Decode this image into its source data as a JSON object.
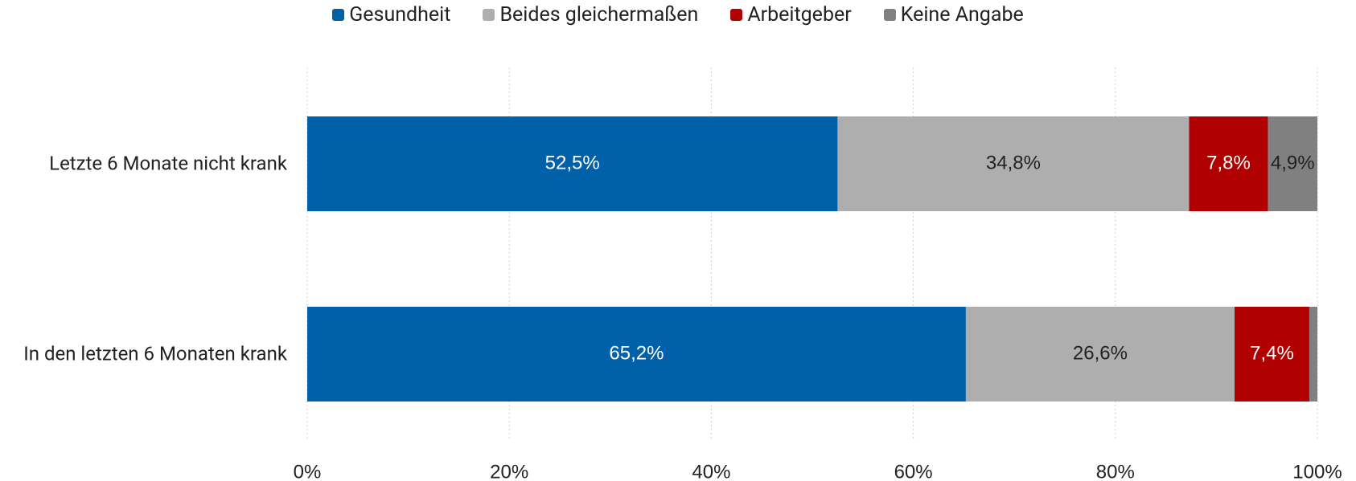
{
  "chart_data": {
    "type": "stacked-bar-horizontal",
    "categories": [
      "Letzte 6 Monate nicht krank",
      "In den letzten 6 Monaten krank"
    ],
    "series": [
      {
        "name": "Gesundheit",
        "color": "#0060a8",
        "label_color": "#ffffff",
        "values": [
          52.5,
          65.2
        ],
        "value_labels": [
          "52,5%",
          "65,2%"
        ]
      },
      {
        "name": "Beides gleichermaßen",
        "color": "#aeaeae",
        "label_color": "#222222",
        "values": [
          34.8,
          26.6
        ],
        "value_labels": [
          "34,8%",
          "26,6%"
        ]
      },
      {
        "name": "Arbeitgeber",
        "color": "#b00000",
        "label_color": "#ffffff",
        "values": [
          7.8,
          7.4
        ],
        "value_labels": [
          "7,8%",
          "7,4%"
        ]
      },
      {
        "name": "Keine Angabe",
        "color": "#808080",
        "label_color": "#222222",
        "values": [
          4.9,
          0.8
        ],
        "value_labels": [
          "4,9%",
          null
        ]
      }
    ],
    "xlim": [
      0,
      100
    ],
    "xticks": [
      {
        "value": 0,
        "label": "0%"
      },
      {
        "value": 20,
        "label": "20%"
      },
      {
        "value": 40,
        "label": "40%"
      },
      {
        "value": 60,
        "label": "60%"
      },
      {
        "value": 80,
        "label": "80%"
      },
      {
        "value": 100,
        "label": "100%"
      }
    ],
    "grid": true,
    "legend": "top"
  }
}
